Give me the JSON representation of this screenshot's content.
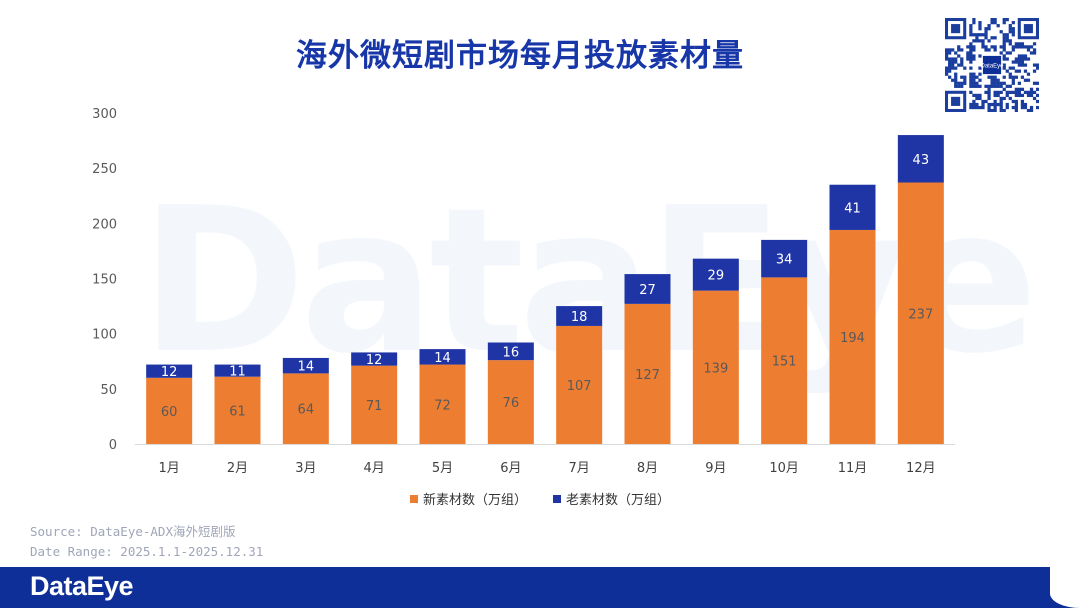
{
  "title": "海外微短剧市场每月投放素材量",
  "watermark": "DataEye",
  "qr": {
    "center_label": "DataEye"
  },
  "chart_data": {
    "type": "bar",
    "stacked": true,
    "categories": [
      "1月",
      "2月",
      "3月",
      "4月",
      "5月",
      "6月",
      "7月",
      "8月",
      "9月",
      "10月",
      "11月",
      "12月"
    ],
    "series": [
      {
        "name": "新素材数（万组）",
        "color": "#ed7d31",
        "label_color": "#595959",
        "values": [
          60,
          61,
          64,
          71,
          72,
          76,
          107,
          127,
          139,
          151,
          194,
          237
        ]
      },
      {
        "name": "老素材数（万组）",
        "color": "#1f35a5",
        "label_color": "#ffffff",
        "values": [
          12,
          11,
          14,
          12,
          14,
          16,
          18,
          27,
          29,
          34,
          41,
          43
        ]
      }
    ],
    "yticks": [
      0,
      50,
      100,
      150,
      200,
      250,
      300
    ],
    "ylim": [
      0,
      300
    ],
    "xlabel": "",
    "ylabel": "",
    "legend_position": "bottom"
  },
  "source": {
    "line1": "Source: DataEye-ADX海外短剧版",
    "line2": "Date Range: 2025.1.1-2025.12.31"
  },
  "footer": {
    "logo": "DataEye"
  }
}
